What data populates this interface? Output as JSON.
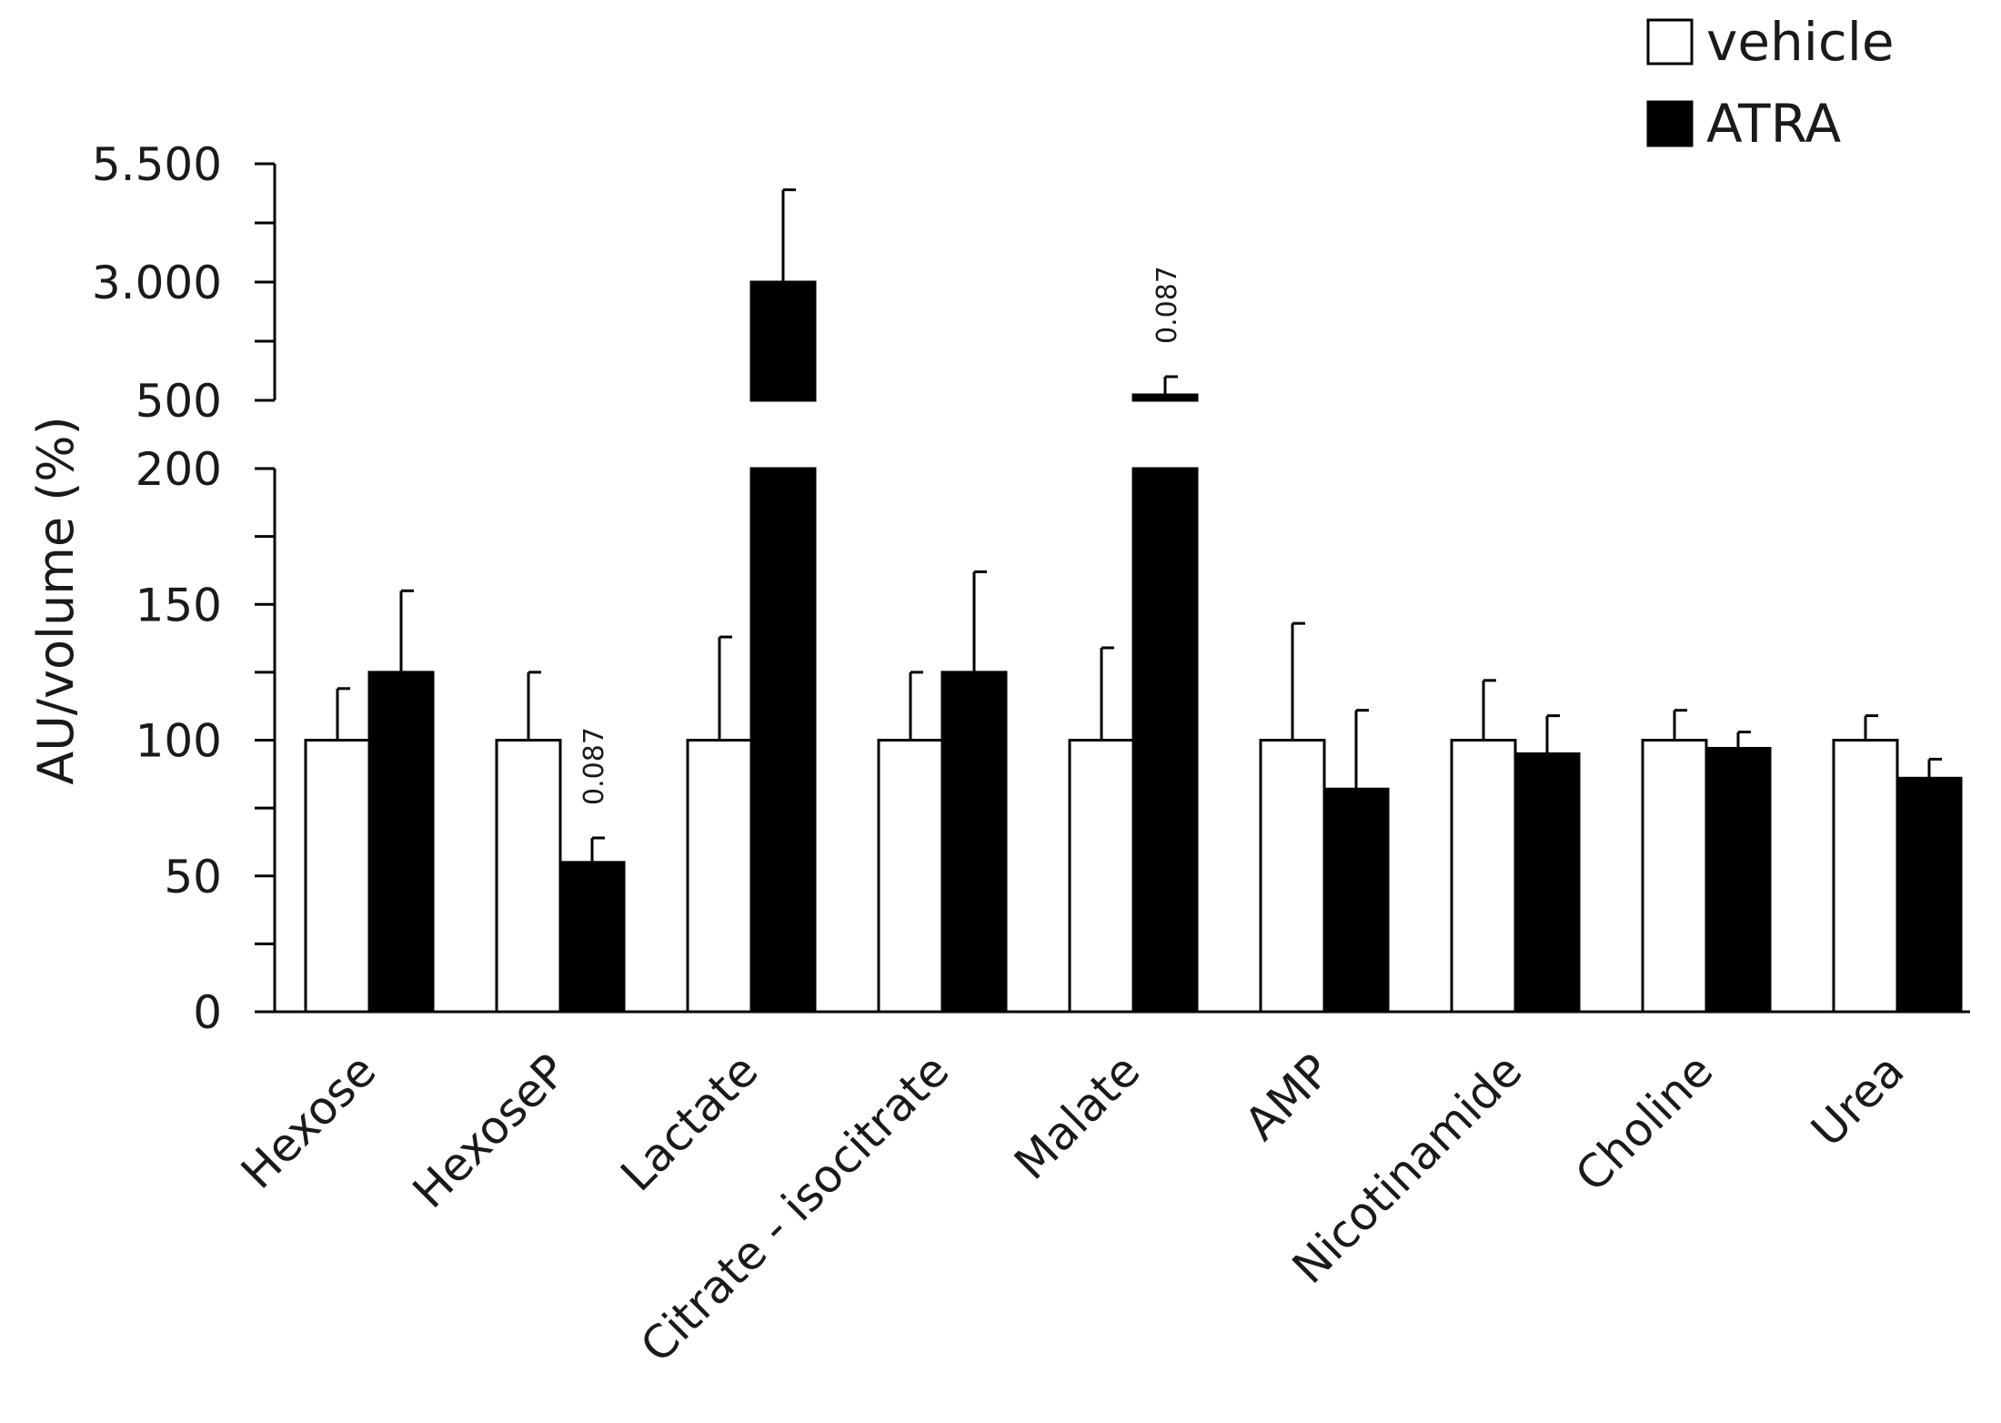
{
  "chart_data": {
    "type": "bar",
    "title": "",
    "xlabel": "",
    "ylabel": "AU/volume (%)",
    "axis_break": {
      "lower_range": [
        0,
        200
      ],
      "upper_range": [
        500,
        5500
      ]
    },
    "y_ticks_lower": [
      {
        "value": 0,
        "label": "0"
      },
      {
        "value": 50,
        "label": "50"
      },
      {
        "value": 100,
        "label": "100"
      },
      {
        "value": 150,
        "label": "150"
      },
      {
        "value": 200,
        "label": "200"
      }
    ],
    "y_ticks_upper": [
      {
        "value": 500,
        "label": "500"
      },
      {
        "value": 3000,
        "label": "3.000"
      },
      {
        "value": 5500,
        "label": "5.500"
      }
    ],
    "categories": [
      "Hexose",
      "HexoseP",
      "Lactate",
      "Citrate - isocitrate",
      "Malate",
      "AMP",
      "Nicotinamide",
      "Choline",
      "Urea"
    ],
    "series": [
      {
        "name": "vehicle",
        "color": "#ffffff",
        "values": [
          100,
          100,
          100,
          100,
          100,
          100,
          100,
          100,
          100
        ],
        "errors": [
          19,
          25,
          38,
          25,
          34,
          43,
          22,
          11,
          9
        ]
      },
      {
        "name": "ATRA",
        "color": "#000000",
        "values": [
          125,
          55,
          3000,
          125,
          550,
          82,
          95,
          97,
          86
        ],
        "errors": [
          30,
          9,
          1950,
          37,
          450,
          29,
          14,
          6,
          7
        ]
      }
    ],
    "annotations": [
      {
        "category": "HexoseP",
        "series": "ATRA",
        "text": "0.087"
      },
      {
        "category": "Malate",
        "series": "ATRA",
        "text": "0.087"
      }
    ],
    "legend": {
      "position": "top-right",
      "entries": [
        {
          "label": "vehicle",
          "color": "#ffffff"
        },
        {
          "label": "ATRA",
          "color": "#000000"
        }
      ]
    }
  }
}
